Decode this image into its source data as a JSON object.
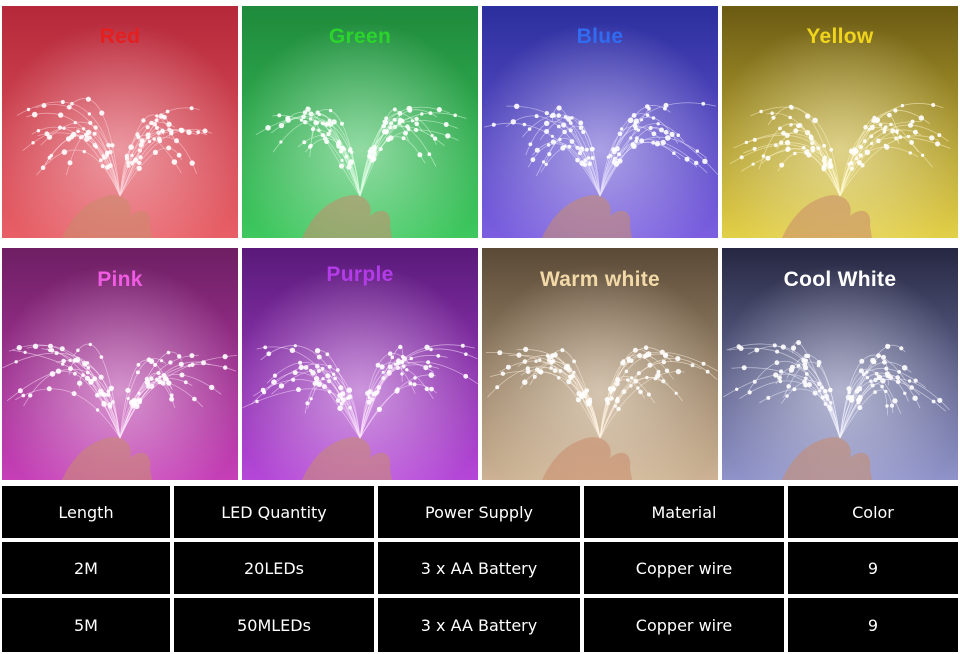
{
  "tiles": [
    {
      "label": "Red",
      "label_color": "#e41f1f",
      "bg_top": "#b5283a",
      "bg_bottom": "#e85f66",
      "glow": "#ffd9e0"
    },
    {
      "label": "Green",
      "label_color": "#2bd42b",
      "bg_top": "#1f8a3c",
      "bg_bottom": "#3ec85e",
      "glow": "#e2ffe8"
    },
    {
      "label": "Blue",
      "label_color": "#2f6cf2",
      "bg_top": "#2b2f9e",
      "bg_bottom": "#7b5fe0",
      "glow": "#ebe6ff"
    },
    {
      "label": "Yellow",
      "label_color": "#f1d51c",
      "bg_top": "#6b5a12",
      "bg_bottom": "#e3d048",
      "glow": "#fff8d0"
    },
    {
      "label": "Pink",
      "label_color": "#f05be3",
      "bg_top": "#6e1f63",
      "bg_bottom": "#c63fb7",
      "glow": "#ffe5fb"
    },
    {
      "label": "Purple",
      "label_color": "#b43be8",
      "bg_top": "#5a1a7a",
      "bg_bottom": "#b547d8",
      "glow": "#fde6ff"
    },
    {
      "label": "Warm white",
      "label_color": "#f3d9a8",
      "bg_top": "#5a4a36",
      "bg_bottom": "#cdb394",
      "glow": "#fff3e2"
    },
    {
      "label": "Cool White",
      "label_color": "#ffffff",
      "bg_top": "#262842",
      "bg_bottom": "#8f93c9",
      "glow": "#f2f3ff"
    }
  ],
  "table": {
    "headers": [
      "Length",
      "LED Quantity",
      "Power Supply",
      "Material",
      "Color"
    ],
    "rows": [
      [
        "2M",
        "20LEDs",
        "3 x AA Battery",
        "Copper wire",
        "9"
      ],
      [
        "5M",
        "50MLEDs",
        "3 x AA Battery",
        "Copper wire",
        "9"
      ]
    ]
  }
}
